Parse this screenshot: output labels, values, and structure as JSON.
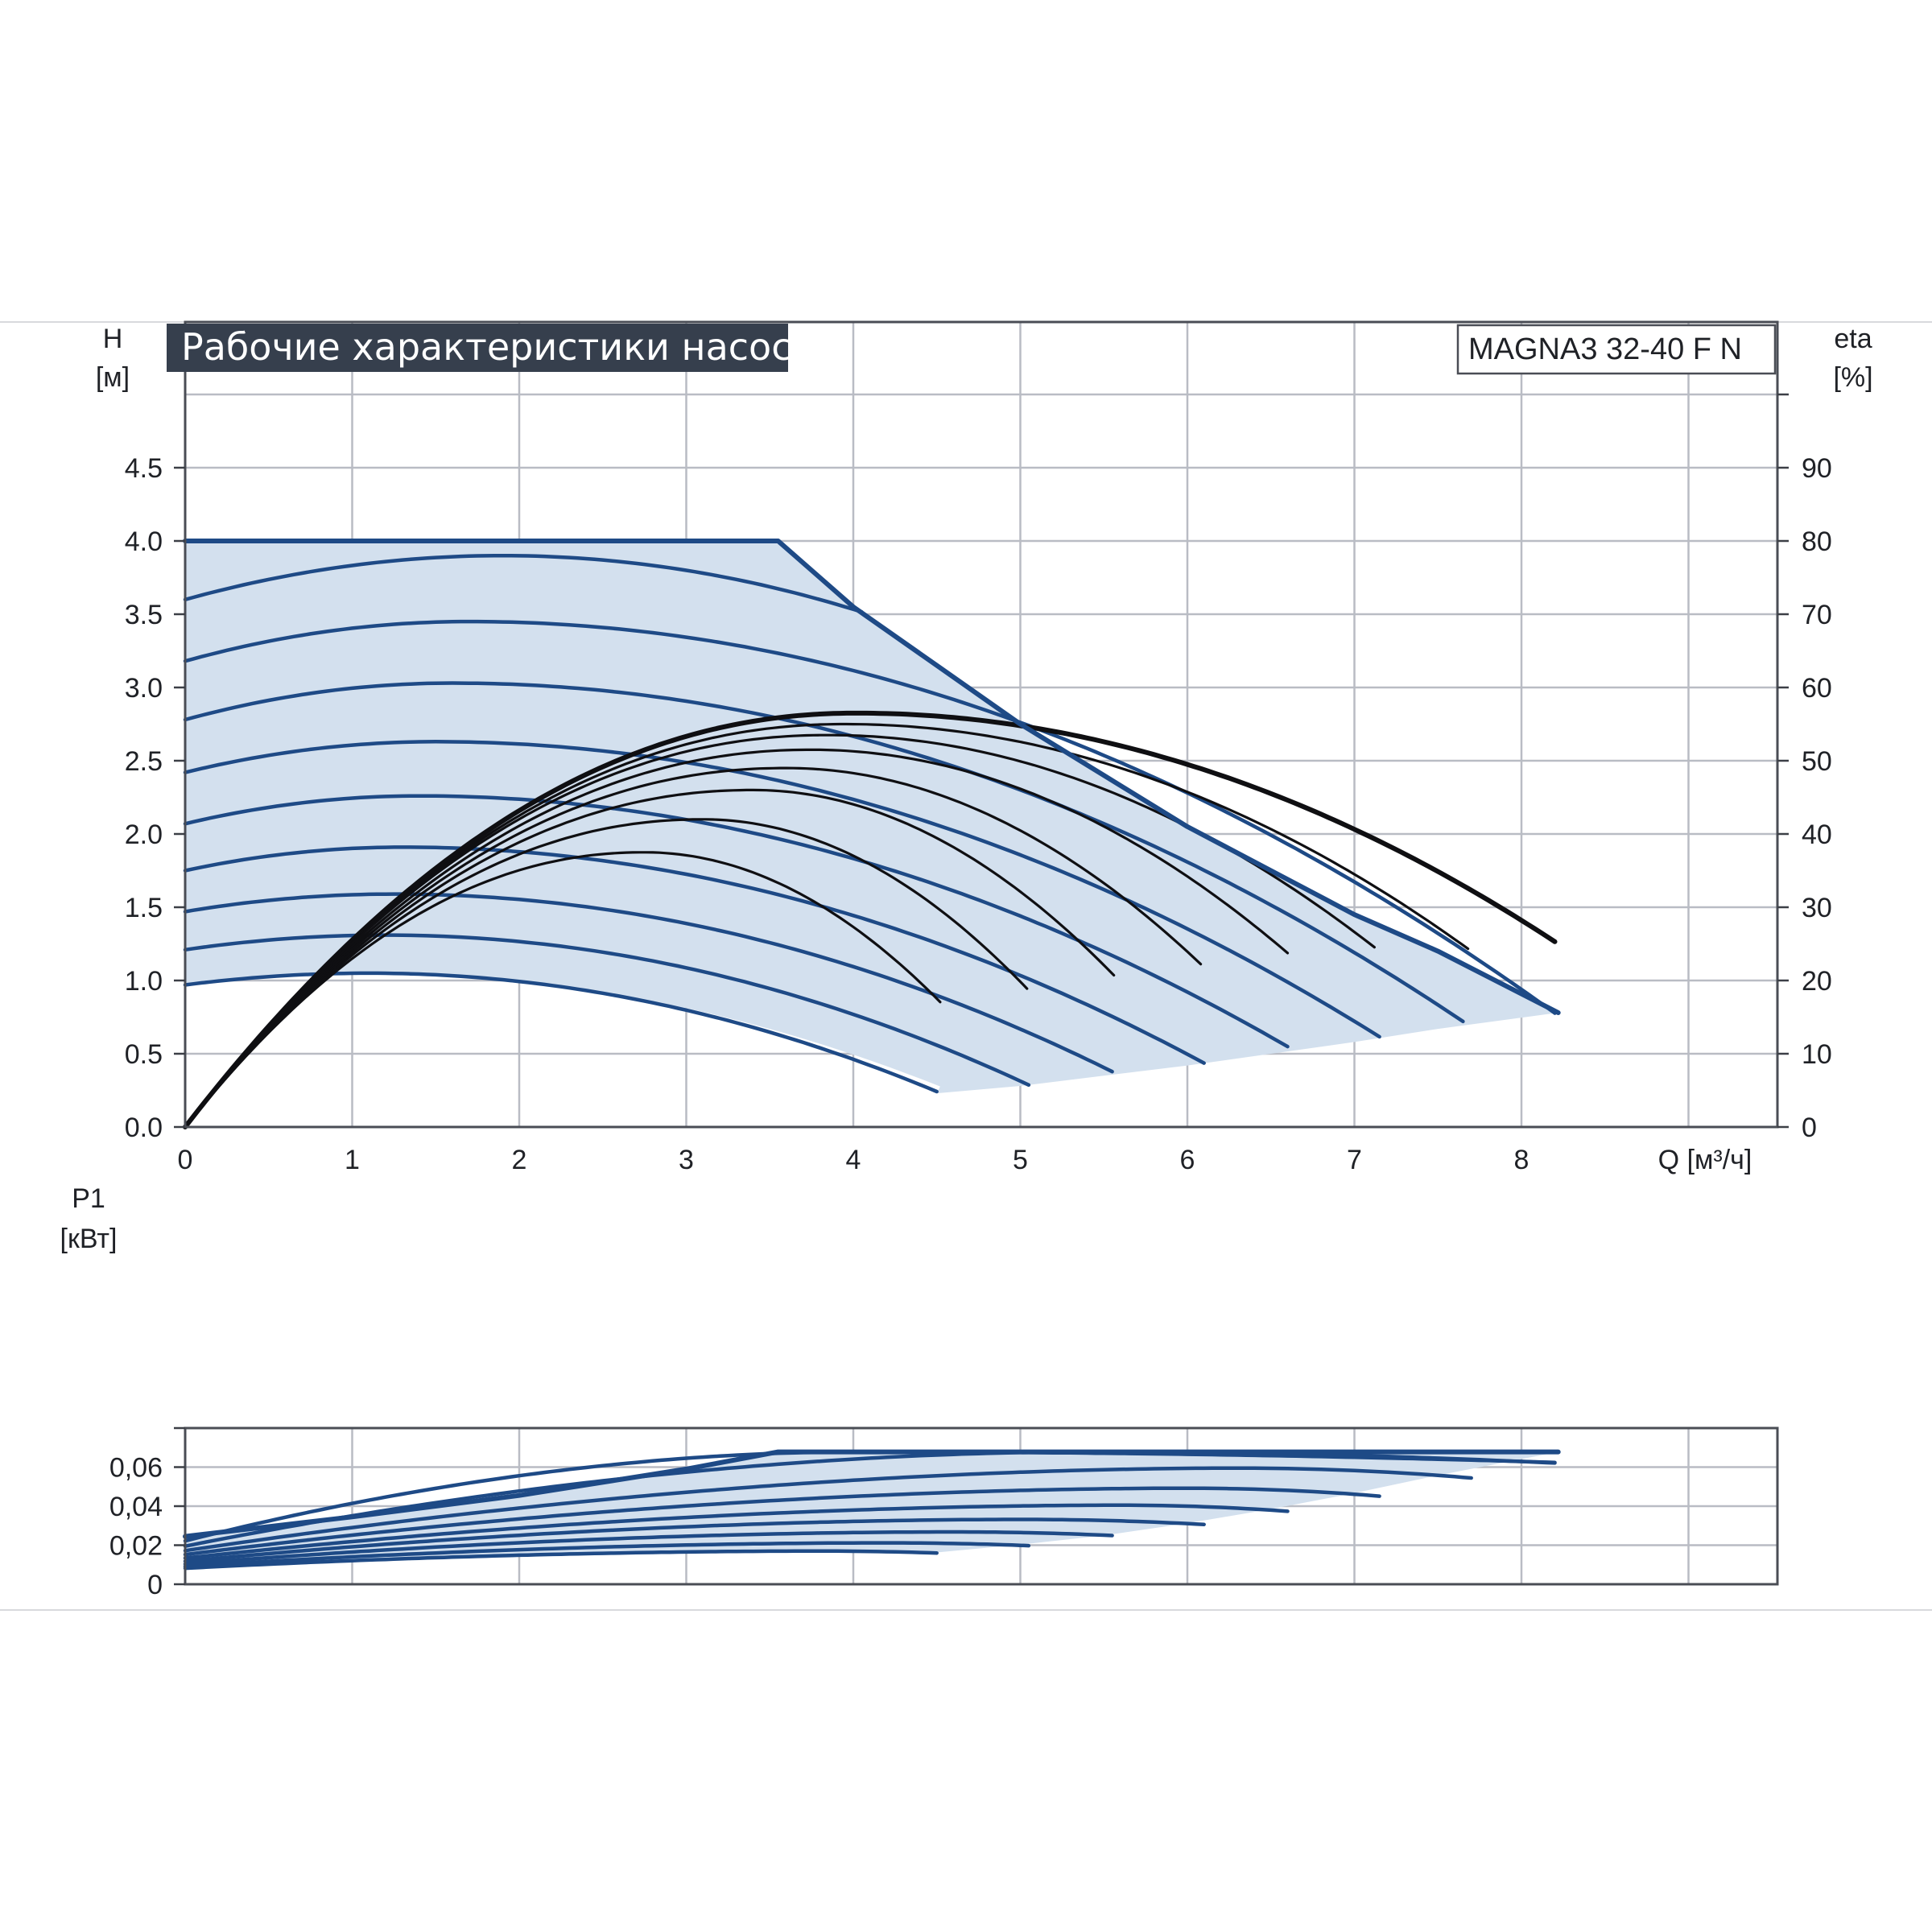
{
  "title": "Рабочие характеристики насоса",
  "model": "MAGNA3 32-40 F N",
  "colors": {
    "curve": "#1e4a86",
    "envelope_fill": "#d3e0ee",
    "efficiency": "#0f0f12",
    "title_bg": "#363f4d",
    "grid": "#b9bcc4"
  },
  "chart_data": [
    {
      "type": "line",
      "id": "head",
      "ylabel": "H",
      "yunit": "[м]",
      "y2label": "eta",
      "y2unit": "[%]",
      "xlabel": "Q [м³/ч]",
      "xlim": [
        0,
        9.5
      ],
      "ylim": [
        0,
        5
      ],
      "y2lim": [
        0,
        100
      ],
      "grid": true,
      "xticks": [
        "0",
        "1",
        "2",
        "3",
        "4",
        "5",
        "6",
        "7",
        "8"
      ],
      "yticks": [
        "0.0",
        "0.5",
        "1.0",
        "1.5",
        "2.0",
        "2.5",
        "3.0",
        "3.5",
        "4.0",
        "4.5"
      ],
      "y2ticks": [
        "0",
        "10",
        "20",
        "30",
        "40",
        "50",
        "60",
        "70",
        "80",
        "90"
      ],
      "max_boundary": [
        [
          0,
          4.0
        ],
        [
          3.55,
          4.0
        ],
        [
          4.0,
          3.55
        ],
        [
          4.5,
          3.15
        ],
        [
          5.0,
          2.75
        ],
        [
          5.5,
          2.4
        ],
        [
          6.0,
          2.05
        ],
        [
          6.5,
          1.75
        ],
        [
          7.0,
          1.45
        ],
        [
          7.5,
          1.2
        ],
        [
          8.22,
          0.78
        ]
      ],
      "min_boundary": [
        [
          4.5,
          0.23
        ],
        [
          5.0,
          0.28
        ],
        [
          5.5,
          0.35
        ],
        [
          6.0,
          0.42
        ],
        [
          6.5,
          0.5
        ],
        [
          7.0,
          0.58
        ],
        [
          7.5,
          0.67
        ],
        [
          8.22,
          0.78
        ]
      ],
      "series": [
        {
          "H0": 3.6,
          "Hmax": 3.9,
          "qpeak": 1.9,
          "qend": 3.62
        },
        {
          "H0": 3.18,
          "Hmax": 3.45,
          "qpeak": 1.7,
          "qend": 8.2
        },
        {
          "H0": 2.78,
          "Hmax": 3.03,
          "qpeak": 1.6,
          "qend": 7.68
        },
        {
          "H0": 2.42,
          "Hmax": 2.63,
          "qpeak": 1.5,
          "qend": 7.16
        },
        {
          "H0": 2.07,
          "Hmax": 2.26,
          "qpeak": 1.4,
          "qend": 6.64
        },
        {
          "H0": 1.75,
          "Hmax": 1.91,
          "qpeak": 1.3,
          "qend": 6.1
        },
        {
          "H0": 1.47,
          "Hmax": 1.59,
          "qpeak": 1.25,
          "qend": 5.58
        },
        {
          "H0": 1.21,
          "Hmax": 1.31,
          "qpeak": 1.2,
          "qend": 5.05
        },
        {
          "H0": 0.97,
          "Hmax": 1.05,
          "qpeak": 1.1,
          "qend": 4.52
        }
      ],
      "efficiency": [
        {
          "peak": 56.5,
          "qpeak": 4.02,
          "qend": 8.22,
          "max": true
        },
        {
          "peak": 55.0,
          "qpeak": 3.95,
          "qend": 7.7
        },
        {
          "peak": 53.5,
          "qpeak": 3.85,
          "qend": 7.15
        },
        {
          "peak": 51.5,
          "qpeak": 3.75,
          "qend": 6.62
        },
        {
          "peak": 49.0,
          "qpeak": 3.6,
          "qend": 6.1
        },
        {
          "peak": 46.0,
          "qpeak": 3.4,
          "qend": 5.58
        },
        {
          "peak": 42.0,
          "qpeak": 3.1,
          "qend": 5.05
        },
        {
          "peak": 37.5,
          "qpeak": 2.75,
          "qend": 4.52
        }
      ]
    },
    {
      "type": "line",
      "id": "power",
      "ylabel": "P1",
      "yunit": "[кВт]",
      "xlim": [
        0,
        9.5
      ],
      "ylim": [
        0,
        0.08
      ],
      "grid": true,
      "yticks": [
        "0",
        "0,02",
        "0,04",
        "0,06"
      ],
      "max_boundary": [
        [
          0,
          0.0245
        ],
        [
          1.0,
          0.0345
        ],
        [
          2.0,
          0.0455
        ],
        [
          3.0,
          0.059
        ],
        [
          3.55,
          0.0678
        ],
        [
          8.22,
          0.0678
        ]
      ],
      "min_boundary": [
        [
          4.5,
          0.0163
        ],
        [
          5.0,
          0.0203
        ],
        [
          5.5,
          0.025
        ],
        [
          6.0,
          0.0312
        ],
        [
          6.5,
          0.0385
        ],
        [
          7.0,
          0.0467
        ],
        [
          7.5,
          0.0558
        ],
        [
          8.22,
          0.0678
        ]
      ],
      "series": [
        {
          "P0": 0.0245,
          "Pmax": 0.0678,
          "qpeak": 3.55,
          "qend": 3.55
        },
        {
          "P0": 0.0222,
          "Pmax": 0.0678,
          "qpeak": 4.0,
          "qend": 8.22
        },
        {
          "P0": 0.0195,
          "Pmax": 0.0678,
          "qpeak": 5.4,
          "qend": 8.22
        },
        {
          "P0": 0.0172,
          "Pmax": 0.0595,
          "qpeak": 6.3,
          "qend": 7.7
        },
        {
          "P0": 0.0152,
          "Pmax": 0.0492,
          "qpeak": 6.0,
          "qend": 7.15
        },
        {
          "P0": 0.0134,
          "Pmax": 0.0405,
          "qpeak": 5.6,
          "qend": 6.62
        },
        {
          "P0": 0.0118,
          "Pmax": 0.0332,
          "qpeak": 5.0,
          "qend": 6.1
        },
        {
          "P0": 0.0104,
          "Pmax": 0.0268,
          "qpeak": 4.6,
          "qend": 5.58
        },
        {
          "P0": 0.0092,
          "Pmax": 0.0212,
          "qpeak": 4.2,
          "qend": 5.05
        },
        {
          "P0": 0.0082,
          "Pmax": 0.017,
          "qpeak": 3.8,
          "qend": 4.52
        }
      ]
    }
  ]
}
